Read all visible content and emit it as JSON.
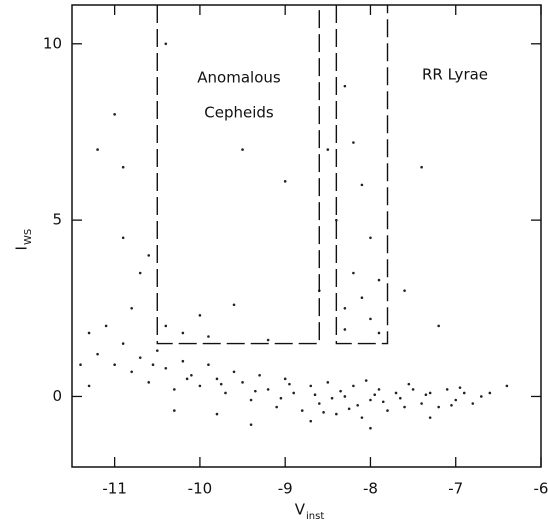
{
  "chart_data": {
    "type": "scatter",
    "x_label": "V",
    "x_label_sub": "inst",
    "y_label": "I",
    "y_label_sub": "WS",
    "xlim": [
      -11.5,
      -6
    ],
    "xticks": [
      -11,
      -10,
      -9,
      -8,
      -7,
      -6
    ],
    "ylim": [
      -2,
      11.1
    ],
    "yticks": [
      0,
      5,
      10
    ],
    "color": "#222222",
    "regions": [
      {
        "lines": [
          "Anomalous",
          "Cepheids"
        ],
        "x": [
          -10.5,
          -8.6
        ],
        "y": [
          1.5,
          11.1
        ]
      },
      {
        "lines": [
          "RR Lyrae"
        ],
        "x": [
          -8.4,
          -7.8
        ],
        "y": [
          1.5,
          11.1
        ]
      }
    ],
    "x": [
      -11.2,
      -11.0,
      -10.9,
      -10.8,
      -10.7,
      -10.6,
      -10.5,
      -10.4,
      -10.3,
      -10.2,
      -10.1,
      -10.0,
      -9.9,
      -9.8,
      -9.7,
      -9.6,
      -9.5,
      -9.4,
      -9.3,
      -9.2,
      -9.1,
      -9.0,
      -8.9,
      -8.8,
      -8.7,
      -8.6,
      -8.5,
      -8.4,
      -8.3,
      -8.2,
      -8.1,
      -8.0,
      -7.9,
      -7.8,
      -7.7,
      -7.6,
      -7.5,
      -7.4,
      -7.3,
      -7.2,
      -7.1,
      -7.0,
      -6.9,
      -6.8,
      -6.7,
      -6.6,
      -8.35,
      -8.15,
      -7.95,
      -7.85,
      -8.05,
      -7.65,
      -7.35,
      -8.45,
      -8.65,
      -9.05,
      -8.25,
      -7.55,
      -7.05,
      -6.95,
      -8.55,
      -8.95,
      -9.35,
      -9.75,
      -10.15,
      -10.55,
      -11.3,
      -11.1,
      -11.0,
      -10.9,
      -11.2,
      -10.7,
      -10.8,
      -10.6,
      -10.4,
      -10.2,
      -9.9,
      -9.6,
      -9.0,
      -9.5,
      -10.4,
      -10.9,
      -8.3,
      -8.2,
      -8.1,
      -8.0,
      -8.2,
      -8.1,
      -8.0,
      -8.3,
      -7.9,
      -8.4,
      -8.5,
      -8.6,
      -7.6,
      -7.4,
      -7.2,
      -8.3,
      -7.9,
      -9.2,
      -10.0,
      -11.3,
      -9.4,
      -8.0,
      -7.3,
      -10.3,
      -9.8,
      -8.7,
      -6.4,
      -11.4
    ],
    "y": [
      1.2,
      0.9,
      1.5,
      0.7,
      1.1,
      0.4,
      1.3,
      0.8,
      0.2,
      1.0,
      0.6,
      0.3,
      0.9,
      0.5,
      0.1,
      0.7,
      0.4,
      -0.1,
      0.6,
      0.2,
      -0.3,
      0.5,
      0.1,
      -0.4,
      0.3,
      -0.2,
      0.4,
      -0.5,
      0.0,
      0.3,
      -0.6,
      -0.1,
      0.2,
      -0.4,
      0.1,
      -0.3,
      0.2,
      -0.2,
      0.1,
      -0.3,
      0.2,
      -0.1,
      0.1,
      -0.2,
      0.0,
      0.1,
      0.15,
      -0.25,
      0.05,
      -0.15,
      0.45,
      -0.05,
      0.05,
      -0.05,
      0.05,
      -0.05,
      -0.35,
      0.35,
      -0.25,
      0.25,
      -0.45,
      0.35,
      0.15,
      0.35,
      0.5,
      0.9,
      0.3,
      2.0,
      8.0,
      6.5,
      7.0,
      3.5,
      2.5,
      4.0,
      2.0,
      1.8,
      1.7,
      2.6,
      6.1,
      7.0,
      10.0,
      4.5,
      8.8,
      7.2,
      6.0,
      4.5,
      3.5,
      2.8,
      2.2,
      1.9,
      1.8,
      5.0,
      7.0,
      3.0,
      3.0,
      6.5,
      2.0,
      2.5,
      3.3,
      1.6,
      2.3,
      1.8,
      -0.8,
      -0.9,
      -0.6,
      -0.4,
      -0.5,
      -0.7,
      0.3,
      0.9
    ]
  }
}
